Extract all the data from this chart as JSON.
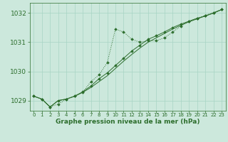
{
  "title": "Graphe pression niveau de la mer (hPa)",
  "background_color": "#cce8dc",
  "grid_color": "#a8d4c4",
  "line_color": "#2d6e2d",
  "marker_color": "#2d6e2d",
  "xlim": [
    -0.5,
    23.5
  ],
  "ylim": [
    1028.65,
    1032.35
  ],
  "yticks": [
    1029,
    1030,
    1031,
    1032
  ],
  "xticks": [
    0,
    1,
    2,
    3,
    4,
    5,
    6,
    7,
    8,
    9,
    10,
    11,
    12,
    13,
    14,
    15,
    16,
    17,
    18,
    19,
    20,
    21,
    22,
    23
  ],
  "series1_x": [
    0,
    1,
    2,
    3,
    4,
    5,
    6,
    7,
    8,
    9,
    10,
    11,
    12,
    13,
    14,
    15,
    16,
    17,
    18,
    19,
    20,
    21,
    22,
    23
  ],
  "series1_y": [
    1029.15,
    1029.05,
    1028.78,
    1028.88,
    1029.05,
    1029.15,
    1029.28,
    1029.65,
    1029.88,
    1030.3,
    1031.45,
    1031.35,
    1031.1,
    1031.0,
    1031.05,
    1031.05,
    1031.15,
    1031.35,
    1031.55,
    1031.72,
    1031.82,
    1031.92,
    1032.02,
    1032.12
  ],
  "series2_x": [
    0,
    1,
    2,
    3,
    4,
    5,
    6,
    7,
    8,
    9,
    10,
    11,
    12,
    13,
    14,
    15,
    16,
    17,
    18,
    19,
    20,
    21,
    22,
    23
  ],
  "series2_y": [
    1029.15,
    1029.05,
    1028.78,
    1029.0,
    1029.05,
    1029.15,
    1029.3,
    1029.5,
    1029.75,
    1029.95,
    1030.2,
    1030.45,
    1030.7,
    1030.9,
    1031.1,
    1031.22,
    1031.35,
    1031.5,
    1031.62,
    1031.72,
    1031.82,
    1031.9,
    1032.0,
    1032.12
  ],
  "series3_x": [
    0,
    1,
    2,
    3,
    4,
    5,
    6,
    7,
    8,
    9,
    10,
    11,
    12,
    13,
    14,
    15,
    16,
    17,
    18,
    19,
    20,
    21,
    22,
    23
  ],
  "series3_y": [
    1029.15,
    1029.05,
    1028.78,
    1029.0,
    1029.05,
    1029.15,
    1029.28,
    1029.45,
    1029.65,
    1029.85,
    1030.1,
    1030.35,
    1030.58,
    1030.8,
    1031.0,
    1031.15,
    1031.3,
    1031.45,
    1031.58,
    1031.7,
    1031.8,
    1031.9,
    1032.0,
    1032.12
  ],
  "ytick_fontsize": 6.5,
  "xtick_fontsize": 5.0,
  "xlabel_fontsize": 6.5
}
